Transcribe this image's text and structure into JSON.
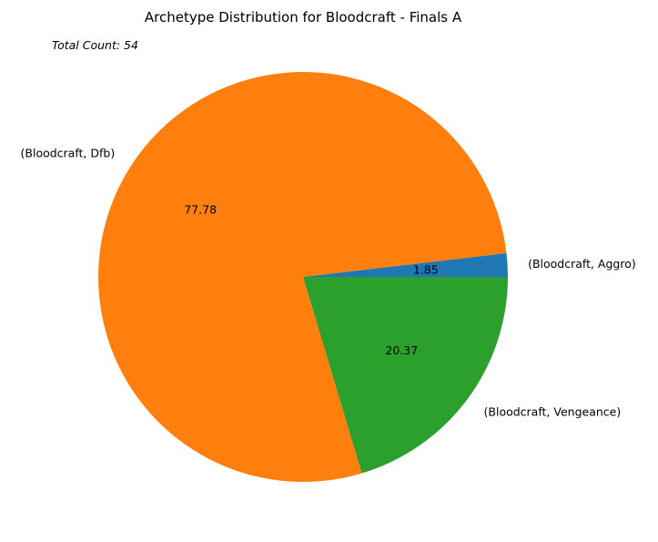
{
  "chart_data": {
    "type": "pie",
    "title": "Archetype Distribution for Bloodcraft - Finals A",
    "annotation": "Total Count: 54",
    "slices": [
      {
        "label": "(Bloodcraft, Aggro)",
        "value": 1.85,
        "pct_label": "1.85",
        "color": "#1f77b4"
      },
      {
        "label": "(Bloodcraft, Dfb)",
        "value": 77.78,
        "pct_label": "77.78",
        "color": "#ff7f0e"
      },
      {
        "label": "(Bloodcraft, Vengeance)",
        "value": 20.37,
        "pct_label": "20.37",
        "color": "#2ca02c"
      }
    ],
    "start_angle_deg": 0,
    "direction": "counterclockwise"
  }
}
